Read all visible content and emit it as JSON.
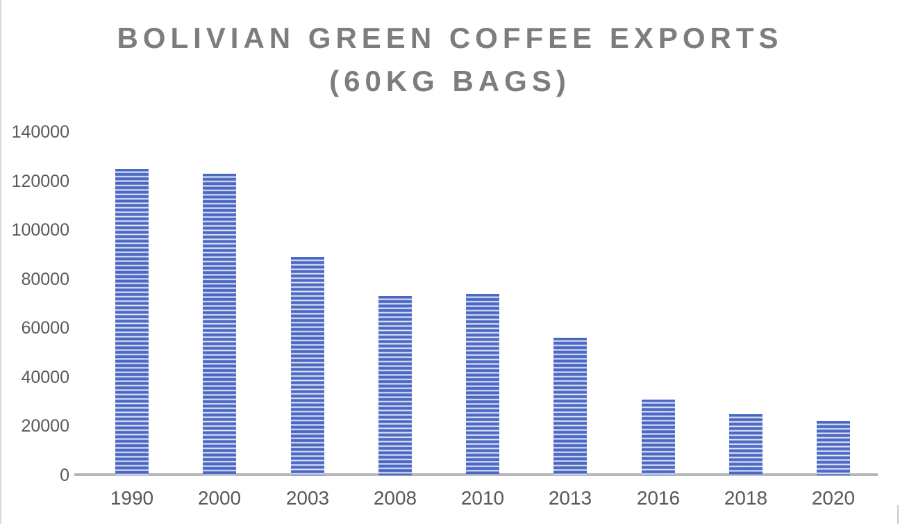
{
  "chart_data": {
    "type": "bar",
    "title": "BOLIVIAN GREEN COFFEE EXPORTS (60KG BAGS)",
    "title_lines": [
      "BOLIVIAN GREEN COFFEE EXPORTS",
      "(60KG BAGS)"
    ],
    "categories": [
      "1990",
      "2000",
      "2003",
      "2008",
      "2010",
      "2013",
      "2016",
      "2018",
      "2020"
    ],
    "values": [
      125000,
      123000,
      89000,
      73000,
      74000,
      56000,
      31000,
      25000,
      22000
    ],
    "xlabel": "",
    "ylabel": "",
    "yticks": [
      0,
      20000,
      40000,
      60000,
      80000,
      100000,
      120000,
      140000
    ],
    "ylim": [
      0,
      140000
    ],
    "grid": false,
    "legend_position": "none",
    "bar_fill_pattern": "horizontal-stripes",
    "colors": {
      "bar_stripe_dark": "#4b68c3",
      "bar_stripe_mid": "#a9b6e4",
      "bar_stripe_light": "#e9edf8",
      "axis_line": "#b7b7b7",
      "tick_label": "#595959",
      "title": "#7d7d7d",
      "background": "#ffffff"
    }
  }
}
